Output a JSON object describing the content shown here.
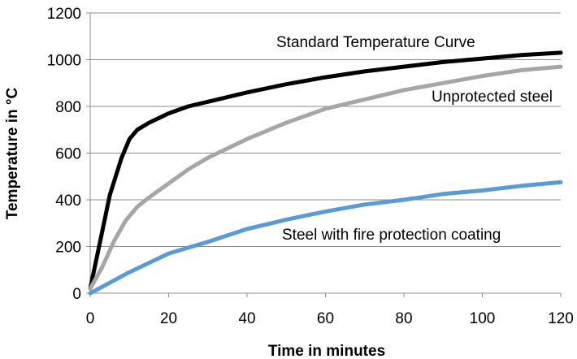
{
  "chart_data": {
    "type": "line",
    "xlabel": "Time in minutes",
    "ylabel": "Temperature in °C",
    "xlim": [
      0,
      120
    ],
    "ylim": [
      0,
      1200
    ],
    "xticks": [
      0,
      20,
      40,
      60,
      80,
      100,
      120
    ],
    "yticks": [
      0,
      200,
      400,
      600,
      800,
      1000,
      1200
    ],
    "grid": "horizontal",
    "series": [
      {
        "name": "Standard Temperature Curve",
        "color": "#000000",
        "x": [
          0,
          2,
          5,
          8,
          10,
          12,
          15,
          20,
          25,
          30,
          40,
          50,
          60,
          70,
          80,
          90,
          100,
          110,
          120
        ],
        "y": [
          20,
          180,
          420,
          580,
          660,
          700,
          730,
          770,
          800,
          820,
          860,
          895,
          925,
          950,
          970,
          990,
          1005,
          1020,
          1030
        ]
      },
      {
        "name": "Unprotected steel",
        "color": "#a6a6a6",
        "x": [
          0,
          3,
          6,
          9,
          12,
          15,
          20,
          25,
          30,
          40,
          50,
          60,
          70,
          80,
          90,
          100,
          110,
          120
        ],
        "y": [
          20,
          110,
          220,
          310,
          370,
          410,
          470,
          530,
          580,
          660,
          730,
          790,
          830,
          870,
          900,
          930,
          955,
          970
        ]
      },
      {
        "name": "Steel with fire protection coating",
        "color": "#5b9bd5",
        "x": [
          0,
          5,
          10,
          15,
          20,
          30,
          40,
          50,
          60,
          70,
          80,
          90,
          100,
          110,
          120
        ],
        "y": [
          0,
          45,
          90,
          130,
          170,
          220,
          275,
          315,
          350,
          380,
          400,
          425,
          440,
          460,
          475
        ]
      }
    ]
  }
}
